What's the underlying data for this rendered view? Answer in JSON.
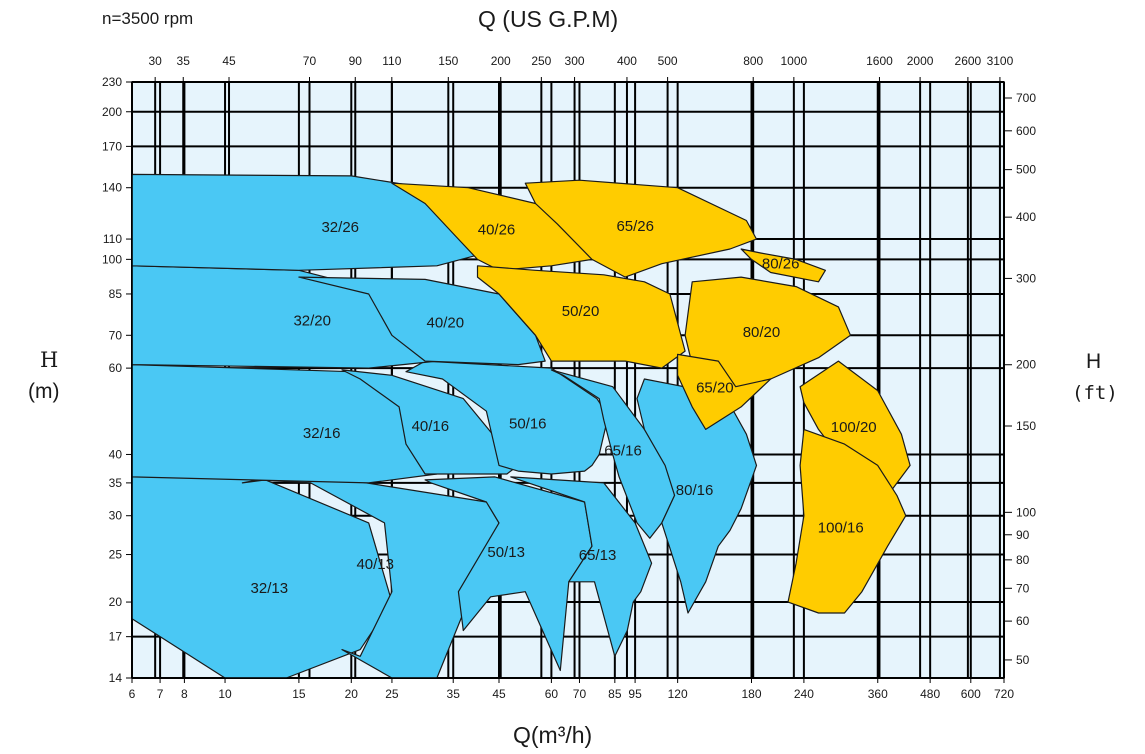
{
  "chart_data": {
    "type": "area",
    "title": "",
    "speed_label": "n=3500 rpm",
    "x_bottom": {
      "label": "Q(m³/h)",
      "ticks": [
        "6",
        "7",
        "8",
        "10",
        "15",
        "20",
        "25",
        "35",
        "45",
        "60",
        "70",
        "85",
        "95",
        "120",
        "180",
        "240",
        "360",
        "480",
        "600",
        "720"
      ],
      "lim": [
        6,
        720
      ]
    },
    "x_top": {
      "label": "Q (US G.P.M)",
      "ticks": [
        "30",
        "35",
        "45",
        "70",
        "90",
        "110",
        "150",
        "200",
        "250",
        "300",
        "400",
        "500",
        "800",
        "1000",
        "1600",
        "2000",
        "2600",
        "3100"
      ]
    },
    "y_left": {
      "label_name": "H",
      "label_unit": "(m)",
      "ticks": [
        "14",
        "17",
        "20",
        "25",
        "30",
        "35",
        "40",
        "60",
        "70",
        "85",
        "100",
        "110",
        "140",
        "170",
        "200",
        "230"
      ],
      "lim": [
        14,
        230
      ]
    },
    "y_right": {
      "label_name": "H",
      "label_unit": "(ft)",
      "ticks": [
        "50",
        "60",
        "70",
        "80",
        "90",
        "100",
        "150",
        "200",
        "300",
        "400",
        "500",
        "600",
        "700"
      ]
    },
    "colors": {
      "blue_region": "#4ac8f4",
      "yellow_region": "#ffcc00",
      "plot_background": "#e6f4fc",
      "grid": "#000000"
    },
    "series": [
      {
        "name": "32/13",
        "color": "blue",
        "outline": [
          [
            6,
            36
          ],
          [
            12,
            36
          ],
          [
            22,
            29
          ],
          [
            25,
            20
          ],
          [
            21,
            16
          ],
          [
            14,
            14
          ],
          [
            10,
            14
          ],
          [
            6,
            18.5
          ]
        ]
      },
      {
        "name": "40/13",
        "color": "blue",
        "outline": [
          [
            11,
            35
          ],
          [
            16,
            36.5
          ],
          [
            42,
            32
          ],
          [
            45,
            29
          ],
          [
            37,
            19
          ],
          [
            32,
            14
          ],
          [
            25,
            14
          ],
          [
            19,
            16
          ],
          [
            21,
            15.5
          ],
          [
            25,
            21
          ],
          [
            24,
            29
          ],
          [
            16,
            35
          ],
          [
            12,
            35.5
          ]
        ]
      },
      {
        "name": "50/13",
        "color": "blue",
        "outline": [
          [
            30,
            35.5
          ],
          [
            44,
            36
          ],
          [
            72,
            32
          ],
          [
            75,
            26
          ],
          [
            66,
            22
          ],
          [
            63,
            14.5
          ],
          [
            52,
            21
          ],
          [
            43,
            20.5
          ],
          [
            37,
            17.5
          ],
          [
            36,
            21
          ],
          [
            45,
            29
          ],
          [
            42,
            32
          ],
          [
            31,
            35
          ]
        ]
      },
      {
        "name": "65/13",
        "color": "blue",
        "outline": [
          [
            48,
            36
          ],
          [
            80,
            35
          ],
          [
            95,
            29
          ],
          [
            104,
            24
          ],
          [
            98,
            21
          ],
          [
            94,
            20
          ],
          [
            91,
            17.5
          ],
          [
            85,
            15.5
          ],
          [
            76,
            22
          ],
          [
            66,
            22
          ],
          [
            75,
            26
          ],
          [
            72,
            32
          ],
          [
            48,
            36
          ]
        ]
      },
      {
        "name": "32/16",
        "color": "blue",
        "outline": [
          [
            6,
            61
          ],
          [
            20,
            59
          ],
          [
            27,
            50
          ],
          [
            30,
            40
          ],
          [
            32,
            36.5
          ],
          [
            22,
            35
          ],
          [
            6,
            36
          ]
        ]
      },
      {
        "name": "40/16",
        "color": "blue",
        "outline": [
          [
            19,
            59.5
          ],
          [
            25,
            58
          ],
          [
            37,
            52
          ],
          [
            50,
            38
          ],
          [
            47,
            36.5
          ],
          [
            43,
            36.5
          ],
          [
            30,
            36.5
          ],
          [
            27,
            42
          ],
          [
            26,
            50
          ],
          [
            21,
            57
          ]
        ]
      },
      {
        "name": "50/16",
        "color": "blue",
        "outline": [
          [
            30,
            62
          ],
          [
            60,
            60
          ],
          [
            77,
            52
          ],
          [
            82,
            48
          ],
          [
            78,
            40
          ],
          [
            75,
            38
          ],
          [
            72,
            37
          ],
          [
            60,
            36.5
          ],
          [
            50,
            37
          ],
          [
            45,
            38
          ],
          [
            42,
            49
          ],
          [
            33,
            57
          ],
          [
            27,
            59
          ]
        ]
      },
      {
        "name": "65/16",
        "color": "blue",
        "outline": [
          [
            60,
            59.5
          ],
          [
            84,
            55
          ],
          [
            100,
            45
          ],
          [
            115,
            38
          ],
          [
            118,
            33
          ],
          [
            110,
            29
          ],
          [
            103,
            27
          ],
          [
            96,
            29
          ],
          [
            87,
            36
          ],
          [
            84,
            40
          ],
          [
            80,
            47
          ],
          [
            78,
            52
          ],
          [
            64,
            58
          ]
        ]
      },
      {
        "name": "80/16",
        "color": "blue",
        "outline": [
          [
            100,
            57
          ],
          [
            155,
            53
          ],
          [
            175,
            44
          ],
          [
            185,
            38
          ],
          [
            170,
            31
          ],
          [
            160,
            28
          ],
          [
            150,
            26
          ],
          [
            140,
            22
          ],
          [
            127,
            19
          ],
          [
            122,
            22
          ],
          [
            110,
            29
          ],
          [
            118,
            33
          ],
          [
            112,
            38
          ],
          [
            100,
            45
          ],
          [
            96,
            52
          ]
        ]
      },
      {
        "name": "32/20",
        "color": "blue",
        "outline": [
          [
            6,
            97
          ],
          [
            15,
            95
          ],
          [
            25,
            85
          ],
          [
            30,
            75
          ],
          [
            32,
            62
          ],
          [
            22,
            60
          ],
          [
            6,
            61
          ]
        ]
      },
      {
        "name": "40/20",
        "color": "blue",
        "outline": [
          [
            15,
            92
          ],
          [
            30,
            91
          ],
          [
            45,
            85
          ],
          [
            55,
            70
          ],
          [
            58,
            62
          ],
          [
            50,
            61
          ],
          [
            30,
            62
          ],
          [
            25,
            70
          ],
          [
            22,
            85
          ]
        ]
      },
      {
        "name": "32/26",
        "color": "blue",
        "outline": [
          [
            6,
            149
          ],
          [
            20,
            148
          ],
          [
            30,
            140
          ],
          [
            38,
            120
          ],
          [
            40,
            102
          ],
          [
            32,
            97
          ],
          [
            15,
            95
          ],
          [
            6,
            97
          ]
        ]
      },
      {
        "name": "40/26",
        "color": "yellow",
        "outline": [
          [
            25,
            143
          ],
          [
            38,
            140
          ],
          [
            55,
            130
          ],
          [
            65,
            118
          ],
          [
            75,
            100
          ],
          [
            60,
            97
          ],
          [
            45,
            95
          ],
          [
            40,
            100
          ],
          [
            36,
            110
          ],
          [
            30,
            130
          ]
        ]
      },
      {
        "name": "65/26",
        "color": "yellow",
        "outline": [
          [
            52,
            143
          ],
          [
            70,
            145
          ],
          [
            120,
            140
          ],
          [
            175,
            120
          ],
          [
            185,
            110
          ],
          [
            160,
            105
          ],
          [
            110,
            98
          ],
          [
            90,
            92
          ],
          [
            75,
            100
          ],
          [
            62,
            118
          ],
          [
            55,
            130
          ]
        ]
      },
      {
        "name": "50/20",
        "color": "yellow",
        "outline": [
          [
            40,
            97
          ],
          [
            55,
            95
          ],
          [
            80,
            93
          ],
          [
            100,
            90
          ],
          [
            115,
            85
          ],
          [
            125,
            65
          ],
          [
            110,
            60
          ],
          [
            90,
            62
          ],
          [
            60,
            62
          ],
          [
            55,
            70
          ],
          [
            45,
            85
          ],
          [
            40,
            92
          ]
        ]
      },
      {
        "name": "80/26",
        "color": "yellow",
        "outline": [
          [
            170,
            105
          ],
          [
            190,
            103
          ],
          [
            230,
            100
          ],
          [
            270,
            95
          ],
          [
            260,
            90
          ],
          [
            200,
            94
          ],
          [
            180,
            100
          ]
        ]
      },
      {
        "name": "80/20",
        "color": "yellow",
        "outline": [
          [
            130,
            90
          ],
          [
            170,
            92
          ],
          [
            230,
            88
          ],
          [
            290,
            80
          ],
          [
            310,
            70
          ],
          [
            260,
            63
          ],
          [
            200,
            57
          ],
          [
            160,
            53
          ],
          [
            130,
            61
          ],
          [
            125,
            70
          ]
        ]
      },
      {
        "name": "65/20",
        "color": "yellow",
        "outline": [
          [
            120,
            64
          ],
          [
            150,
            62
          ],
          [
            165,
            55
          ],
          [
            200,
            57
          ],
          [
            170,
            50
          ],
          [
            140,
            45
          ],
          [
            130,
            50
          ],
          [
            120,
            58
          ]
        ]
      },
      {
        "name": "100/20",
        "color": "yellow",
        "outline": [
          [
            235,
            55
          ],
          [
            290,
            62
          ],
          [
            360,
            54
          ],
          [
            410,
            44
          ],
          [
            430,
            38
          ],
          [
            370,
            32
          ],
          [
            310,
            37
          ],
          [
            260,
            45
          ],
          [
            240,
            51
          ]
        ]
      },
      {
        "name": "100/16",
        "color": "yellow",
        "outline": [
          [
            240,
            45
          ],
          [
            300,
            42
          ],
          [
            360,
            38
          ],
          [
            400,
            33
          ],
          [
            420,
            30
          ],
          [
            380,
            26
          ],
          [
            330,
            21
          ],
          [
            300,
            19
          ],
          [
            260,
            19
          ],
          [
            220,
            20
          ],
          [
            230,
            24
          ],
          [
            240,
            30
          ],
          [
            235,
            38
          ]
        ]
      }
    ]
  }
}
